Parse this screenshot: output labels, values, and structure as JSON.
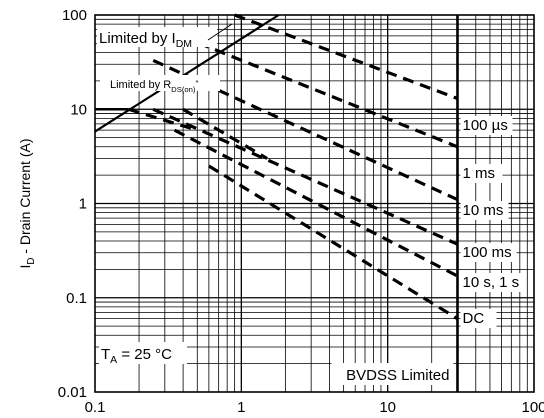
{
  "chart_data": {
    "type": "line",
    "xscale": "log",
    "yscale": "log",
    "xlim": [
      0.1,
      100
    ],
    "ylim": [
      0.01,
      100
    ],
    "grid": true,
    "x_ticks": [
      {
        "value": 0.1,
        "label": "0.1"
      },
      {
        "value": 1,
        "label": "1"
      },
      {
        "value": 10,
        "label": "10"
      },
      {
        "value": 100,
        "label": "100"
      }
    ],
    "y_ticks": [
      {
        "value": 0.01,
        "label": "0.01"
      },
      {
        "value": 0.1,
        "label": "0.1"
      },
      {
        "value": 1,
        "label": "1"
      },
      {
        "value": 10,
        "label": "10"
      },
      {
        "value": 100,
        "label": "100"
      }
    ],
    "ylabel": {
      "main": "I",
      "sub": "D",
      "rest": " - Drain Current (A)"
    },
    "annotations": {
      "limited_idm": {
        "main": "Limited by I",
        "sub": "DM"
      },
      "limited_rds": {
        "main": "Limited by R",
        "sub": "DS(on)",
        "sup": "*"
      },
      "ta": {
        "main": "T",
        "sub": "A",
        "rest": " = 25 °C"
      },
      "bvdss": "BVDSS Limited"
    },
    "limits": {
      "current_plateau": 10,
      "bvdss_voltage": 30,
      "rds_line": [
        {
          "x": 0.1,
          "y": 5.8
        },
        {
          "x": 1.8,
          "y": 100
        }
      ]
    },
    "series": [
      {
        "name": "100 µs",
        "style": "dashed",
        "points": [
          {
            "x": 0.9,
            "y": 100
          },
          {
            "x": 30,
            "y": 13
          }
        ]
      },
      {
        "name": "1 ms",
        "style": "dashed",
        "points": [
          {
            "x": 0.3,
            "y": 70
          },
          {
            "x": 30,
            "y": 4
          }
        ]
      },
      {
        "name": "10 ms",
        "style": "dashed",
        "points": [
          {
            "x": 0.25,
            "y": 33
          },
          {
            "x": 30,
            "y": 1.1
          }
        ]
      },
      {
        "name": "100 ms",
        "style": "dashed",
        "points": [
          {
            "x": 0.25,
            "y": 10
          },
          {
            "x": 30,
            "y": 0.37
          }
        ]
      },
      {
        "name": "10 s, 1 s",
        "style": "dashed",
        "points": [
          {
            "x": 0.35,
            "y": 6
          },
          {
            "x": 30,
            "y": 0.17
          }
        ]
      },
      {
        "name": "DC",
        "style": "dashed",
        "points": [
          {
            "x": 0.6,
            "y": 2.5
          },
          {
            "x": 30,
            "y": 0.06
          }
        ]
      }
    ],
    "extra_dashed_segments": [
      {
        "points": [
          {
            "x": 0.17,
            "y": 10
          },
          {
            "x": 0.5,
            "y": 6
          }
        ]
      },
      {
        "points": [
          {
            "x": 0.4,
            "y": 10
          },
          {
            "x": 1.5,
            "y": 3
          }
        ]
      }
    ]
  }
}
